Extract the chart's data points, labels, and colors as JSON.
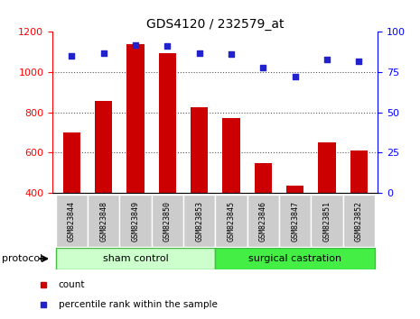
{
  "title": "GDS4120 / 232579_at",
  "samples": [
    "GSM823844",
    "GSM823848",
    "GSM823849",
    "GSM823850",
    "GSM823853",
    "GSM823845",
    "GSM823846",
    "GSM823847",
    "GSM823851",
    "GSM823852"
  ],
  "bar_values": [
    700,
    855,
    1140,
    1095,
    825,
    770,
    548,
    435,
    650,
    612
  ],
  "dot_values": [
    85,
    87,
    92,
    91,
    87,
    86,
    78,
    72,
    83,
    82
  ],
  "bar_bottom": 400,
  "ylim_left": [
    400,
    1200
  ],
  "ylim_right": [
    0,
    100
  ],
  "yticks_left": [
    400,
    600,
    800,
    1000,
    1200
  ],
  "yticks_right": [
    0,
    25,
    50,
    75,
    100
  ],
  "bar_color": "#cc0000",
  "dot_color": "#2222cc",
  "groups": [
    {
      "label": "sham control",
      "start": 0,
      "end": 5,
      "color": "#ccffcc",
      "border": "#44bb44"
    },
    {
      "label": "surgical castration",
      "start": 5,
      "end": 10,
      "color": "#44ee44",
      "border": "#44bb44"
    }
  ],
  "group_label": "protocol",
  "legend_items": [
    {
      "label": "count",
      "color": "#cc0000"
    },
    {
      "label": "percentile rank within the sample",
      "color": "#2222cc"
    }
  ],
  "tick_label_bg": "#cccccc",
  "grid_color": "#333333",
  "title_fontsize": 10
}
